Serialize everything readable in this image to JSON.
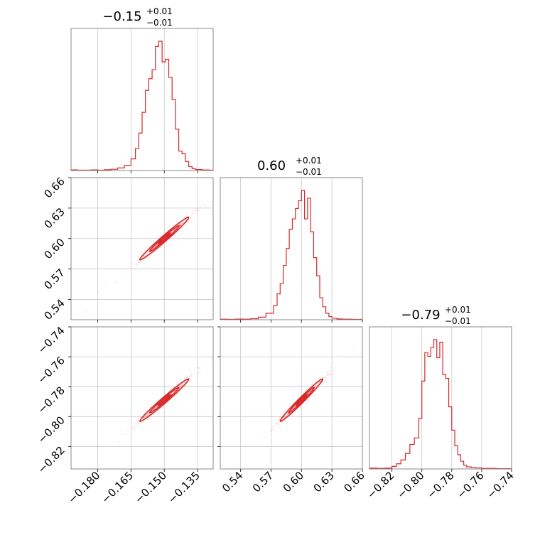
{
  "chart_data": {
    "type": "corner",
    "color": "#d62728",
    "parameters": [
      {
        "range": [
          -0.192,
          -0.128
        ],
        "ticks": [
          -0.18,
          -0.165,
          -0.15,
          -0.135
        ],
        "tick_labels": [
          "−0.180",
          "−0.165",
          "−0.150",
          "−0.135"
        ]
      },
      {
        "range": [
          0.52,
          0.66
        ],
        "ticks": [
          0.54,
          0.57,
          0.6,
          0.63,
          0.66
        ],
        "tick_labels": [
          "0.54",
          "0.57",
          "0.60",
          "0.63",
          "0.66"
        ]
      },
      {
        "range": [
          -0.835,
          -0.74
        ],
        "ticks": [
          -0.82,
          -0.8,
          -0.78,
          -0.76,
          -0.74
        ],
        "tick_labels": [
          "−0.82",
          "−0.80",
          "−0.78",
          "−0.76",
          "−0.74"
        ]
      }
    ],
    "titles": [
      {
        "main": "−0.15",
        "plus": "+0.01",
        "minus": "−0.01"
      },
      {
        "main": "0.60",
        "plus": "+0.01",
        "minus": "−0.01"
      },
      {
        "main": "−0.79",
        "plus": "+0.01",
        "minus": "−0.01"
      }
    ],
    "histograms": [
      {
        "edges": [
          -0.192,
          -0.189,
          -0.186,
          -0.183,
          -0.18,
          -0.177,
          -0.174,
          -0.171,
          -0.168,
          -0.165,
          -0.163,
          -0.1615,
          -0.16,
          -0.1585,
          -0.157,
          -0.1555,
          -0.154,
          -0.1525,
          -0.151,
          -0.1495,
          -0.148,
          -0.1465,
          -0.145,
          -0.1435,
          -0.142,
          -0.1405,
          -0.139,
          -0.1375,
          -0.136,
          -0.133,
          -0.13,
          -0.128
        ],
        "counts": [
          0.005,
          0.003,
          0.003,
          0.005,
          0.003,
          0.006,
          0.01,
          0.02,
          0.04,
          0.09,
          0.17,
          0.29,
          0.45,
          0.62,
          0.71,
          0.78,
          0.96,
          1.0,
          0.84,
          0.86,
          0.72,
          0.55,
          0.32,
          0.15,
          0.13,
          0.07,
          0.03,
          0.015,
          0.008,
          0.004,
          0.003
        ]
      },
      {
        "edges": [
          0.52,
          0.5275,
          0.535,
          0.5425,
          0.55,
          0.5575,
          0.565,
          0.5725,
          0.576,
          0.579,
          0.582,
          0.585,
          0.588,
          0.591,
          0.594,
          0.597,
          0.6,
          0.603,
          0.606,
          0.609,
          0.612,
          0.615,
          0.618,
          0.621,
          0.624,
          0.627,
          0.63,
          0.635,
          0.64,
          0.65,
          0.66
        ],
        "counts": [
          0.004,
          0.003,
          0.005,
          0.004,
          0.008,
          0.02,
          0.05,
          0.11,
          0.2,
          0.28,
          0.42,
          0.55,
          0.7,
          0.78,
          0.86,
          0.92,
          1.0,
          0.78,
          0.94,
          0.68,
          0.48,
          0.34,
          0.17,
          0.1,
          0.05,
          0.025,
          0.012,
          0.006,
          0.004,
          0.003
        ]
      },
      {
        "edges": [
          -0.835,
          -0.83,
          -0.825,
          -0.82,
          -0.817,
          -0.814,
          -0.811,
          -0.808,
          -0.805,
          -0.802,
          -0.8,
          -0.798,
          -0.796,
          -0.794,
          -0.792,
          -0.79,
          -0.788,
          -0.786,
          -0.784,
          -0.782,
          -0.78,
          -0.778,
          -0.776,
          -0.774,
          -0.772,
          -0.77,
          -0.767,
          -0.764,
          -0.76,
          -0.75,
          -0.74
        ],
        "counts": [
          0.006,
          0.004,
          0.006,
          0.02,
          0.04,
          0.07,
          0.12,
          0.19,
          0.24,
          0.39,
          0.68,
          0.9,
          0.87,
          0.94,
          1.0,
          0.86,
          0.98,
          0.73,
          0.7,
          0.48,
          0.3,
          0.18,
          0.11,
          0.06,
          0.03,
          0.016,
          0.01,
          0.008,
          0.004,
          0.002
        ]
      }
    ],
    "pairs": [
      {
        "x": 0,
        "y": 1,
        "center": [
          -0.15,
          0.6
        ],
        "sx": 0.0055,
        "sy": 0.0105,
        "rho": 0.985
      },
      {
        "x": 0,
        "y": 2,
        "center": [
          -0.15,
          -0.789
        ],
        "sx": 0.0055,
        "sy": 0.0071,
        "rho": 0.985
      },
      {
        "x": 1,
        "y": 2,
        "center": [
          0.6,
          -0.789
        ],
        "sx": 0.0105,
        "sy": 0.0071,
        "rho": 0.985
      }
    ]
  }
}
